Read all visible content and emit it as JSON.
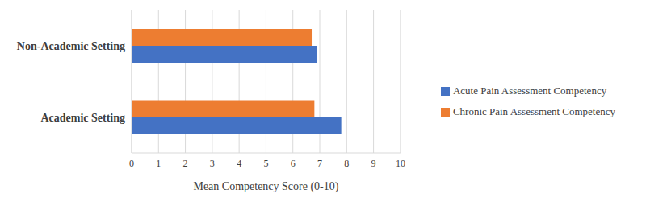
{
  "chart_data": {
    "type": "bar",
    "orientation": "horizontal",
    "xlabel": "Mean Competency Score (0-10)",
    "categories": [
      "Non-Academic Setting",
      "Academic Setting"
    ],
    "series": [
      {
        "name": "Chronic Pain Assessment Competency",
        "color": "#ed7d31",
        "values": [
          6.7,
          6.8
        ]
      },
      {
        "name": "Acute Pain Assessment Competency",
        "color": "#4472c4",
        "values": [
          6.9,
          7.8
        ]
      }
    ],
    "xlim": [
      0,
      10
    ],
    "xticks": [
      0,
      1,
      2,
      3,
      4,
      5,
      6,
      7,
      8,
      9,
      10
    ],
    "grid": true,
    "legend": "right"
  }
}
